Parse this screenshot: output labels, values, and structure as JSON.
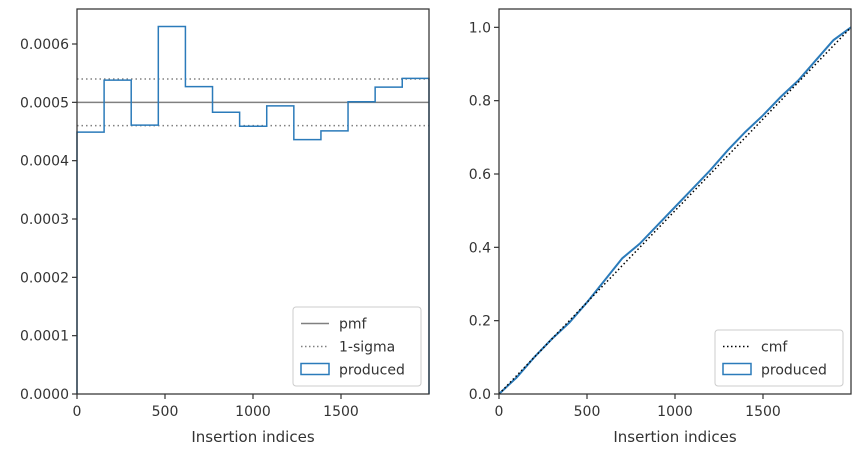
{
  "chart_data": [
    {
      "type": "histogram",
      "xlabel": "Insertion indices",
      "ylabel": "",
      "xlim": [
        0,
        2000
      ],
      "ylim": [
        0,
        0.00066
      ],
      "xticks": [
        0,
        500,
        1000,
        1500
      ],
      "yticks": [
        0,
        0.0001,
        0.0002,
        0.0003,
        0.0004,
        0.0005,
        0.0006
      ],
      "ytick_labels": [
        "0.0000",
        "0.0001",
        "0.0002",
        "0.0003",
        "0.0004",
        "0.0005",
        "0.0006"
      ],
      "bin_edges": [
        0,
        154,
        308,
        462,
        616,
        770,
        924,
        1078,
        1232,
        1386,
        1540,
        1694,
        1848,
        2000
      ],
      "series": [
        {
          "name": "produced",
          "style": "step",
          "color": "#2b7bba",
          "values": [
            0.000449,
            0.000538,
            0.000461,
            0.00063,
            0.000527,
            0.000483,
            0.000459,
            0.000494,
            0.000436,
            0.000451,
            0.000501,
            0.000526,
            0.000541
          ]
        }
      ],
      "reference_lines": [
        {
          "name": "pmf",
          "y": 0.0005,
          "style": "solid",
          "color": "#808080"
        },
        {
          "name": "1-sigma",
          "y": [
            0.00046,
            0.00054
          ],
          "style": "dotted",
          "color": "#808080"
        }
      ],
      "legend": {
        "position": "lower right",
        "entries": [
          {
            "label": "pmf",
            "marker": "solid-line",
            "color": "#808080"
          },
          {
            "label": "1-sigma",
            "marker": "dotted-line",
            "color": "#808080"
          },
          {
            "label": "produced",
            "marker": "patch",
            "color": "#2b7bba"
          }
        ]
      },
      "grid": false
    },
    {
      "type": "line",
      "xlabel": "Insertion indices",
      "ylabel": "",
      "xlim": [
        0,
        2000
      ],
      "ylim": [
        0,
        1.05
      ],
      "xticks": [
        0,
        500,
        1000,
        1500
      ],
      "yticks": [
        0,
        0.2,
        0.4,
        0.6,
        0.8,
        1.0
      ],
      "ytick_labels": [
        "0.0",
        "0.2",
        "0.4",
        "0.6",
        "0.8",
        "1.0"
      ],
      "series": [
        {
          "name": "cmf",
          "style": "dotted",
          "color": "#000000",
          "x": [
            0,
            2000
          ],
          "y": [
            0,
            1
          ]
        },
        {
          "name": "produced",
          "style": "solid",
          "color": "#2b7bba",
          "x": [
            0,
            100,
            200,
            300,
            400,
            500,
            600,
            700,
            800,
            900,
            1000,
            1100,
            1200,
            1300,
            1400,
            1500,
            1600,
            1700,
            1800,
            1900,
            2000
          ],
          "y": [
            0,
            0.045,
            0.1,
            0.15,
            0.195,
            0.25,
            0.31,
            0.37,
            0.41,
            0.46,
            0.51,
            0.56,
            0.61,
            0.665,
            0.715,
            0.76,
            0.81,
            0.855,
            0.91,
            0.965,
            1.0
          ]
        }
      ],
      "legend": {
        "position": "lower right",
        "entries": [
          {
            "label": "cmf",
            "marker": "dotted-line",
            "color": "#000000"
          },
          {
            "label": "produced",
            "marker": "patch",
            "color": "#2b7bba"
          }
        ]
      },
      "grid": false
    }
  ]
}
